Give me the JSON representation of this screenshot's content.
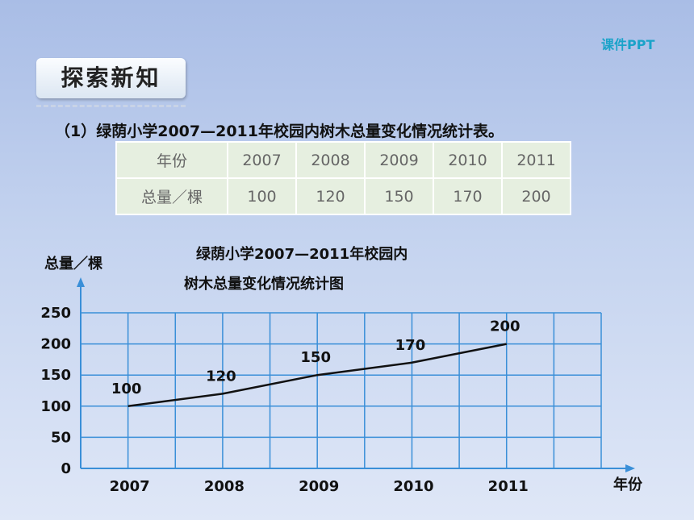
{
  "brand": "课件PPT",
  "section": "探索新知",
  "heading": "（1）绿荫小学2007—2011年校园内树木总量变化情况统计表。",
  "table": {
    "header": [
      "年份",
      "2007",
      "2008",
      "2009",
      "2010",
      "2011"
    ],
    "rows": [
      [
        "总量／棵",
        "100",
        "120",
        "150",
        "170",
        "200"
      ]
    ]
  },
  "chart_data": {
    "type": "line",
    "title": [
      "绿荫小学2007—2011年校园内",
      "树木总量变化情况统计图"
    ],
    "y_label": "总量／棵",
    "x_label": "年份",
    "categories": [
      "2007",
      "2008",
      "2009",
      "2010",
      "2011"
    ],
    "values": [
      100,
      120,
      150,
      170,
      200
    ],
    "color": "#111111",
    "ylim": [
      0,
      250
    ],
    "yticks": [
      0,
      50,
      100,
      150,
      200,
      250
    ],
    "grid": true,
    "grid_color": "#3a8fd8"
  }
}
